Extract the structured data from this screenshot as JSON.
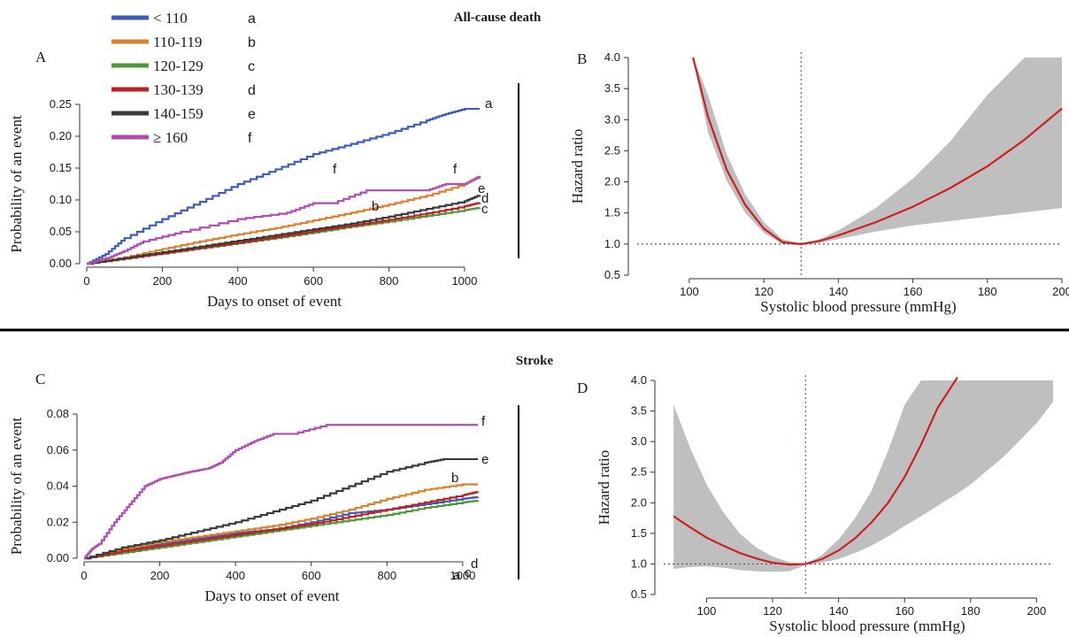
{
  "section_titles": {
    "top": "All-cause death",
    "bottom": "Stroke"
  },
  "legend": [
    {
      "label": "< 110",
      "letter": "a",
      "color": "#3e5dba"
    },
    {
      "label": "110-119",
      "letter": "b",
      "color": "#d9822b"
    },
    {
      "label": "120-129",
      "letter": "c",
      "color": "#4e9a3a"
    },
    {
      "label": "130-139",
      "letter": "d",
      "color": "#c0201f"
    },
    {
      "label": "140-159",
      "letter": "e",
      "color": "#3a3a3a"
    },
    {
      "label": "≥ 160",
      "letter": "f",
      "color": "#b04bb0"
    }
  ],
  "chart_data": [
    {
      "panel": "A",
      "type": "line",
      "xlabel": "Days to onset of event",
      "ylabel": "Probability of an event",
      "xlim": [
        0,
        1040
      ],
      "ylim": [
        0,
        0.25
      ],
      "xticks": [
        "0",
        "200",
        "400",
        "600",
        "800",
        "1000"
      ],
      "yticks": [
        "0.00",
        "0.05",
        "0.10",
        "0.15",
        "0.20",
        "0.25"
      ],
      "series": [
        {
          "name": "< 110",
          "letter": "a",
          "color": "#3e5dba",
          "x": [
            0,
            50,
            100,
            200,
            300,
            400,
            500,
            600,
            700,
            800,
            900,
            950,
            1000,
            1040
          ],
          "y": [
            0,
            0.015,
            0.04,
            0.07,
            0.097,
            0.125,
            0.148,
            0.172,
            0.188,
            0.205,
            0.225,
            0.235,
            0.243,
            0.243
          ]
        },
        {
          "name": "110-119",
          "letter": "b",
          "color": "#d9822b",
          "x": [
            0,
            100,
            200,
            300,
            400,
            500,
            600,
            700,
            800,
            900,
            1000,
            1040
          ],
          "y": [
            0,
            0.01,
            0.023,
            0.035,
            0.046,
            0.056,
            0.068,
            0.08,
            0.093,
            0.107,
            0.125,
            0.138
          ]
        },
        {
          "name": "120-129",
          "letter": "c",
          "color": "#4e9a3a",
          "x": [
            0,
            100,
            200,
            300,
            400,
            500,
            600,
            700,
            800,
            900,
            1000,
            1040
          ],
          "y": [
            0,
            0.008,
            0.016,
            0.024,
            0.032,
            0.04,
            0.049,
            0.058,
            0.066,
            0.075,
            0.084,
            0.088
          ]
        },
        {
          "name": "130-139",
          "letter": "d",
          "color": "#c0201f",
          "x": [
            0,
            100,
            200,
            300,
            400,
            500,
            600,
            700,
            800,
            900,
            1000,
            1040
          ],
          "y": [
            0,
            0.008,
            0.016,
            0.025,
            0.033,
            0.042,
            0.051,
            0.06,
            0.069,
            0.079,
            0.09,
            0.096
          ]
        },
        {
          "name": "140-159",
          "letter": "e",
          "color": "#3a3a3a",
          "x": [
            0,
            100,
            200,
            300,
            400,
            500,
            600,
            700,
            800,
            900,
            1000,
            1040
          ],
          "y": [
            0,
            0.009,
            0.018,
            0.027,
            0.036,
            0.045,
            0.054,
            0.063,
            0.074,
            0.086,
            0.098,
            0.108
          ]
        },
        {
          "name": "≥ 160",
          "letter": "f",
          "color": "#b04bb0",
          "x": [
            0,
            60,
            100,
            150,
            250,
            400,
            530,
            600,
            650,
            740,
            800,
            900,
            950,
            1000,
            1040
          ],
          "y": [
            0,
            0.01,
            0.02,
            0.035,
            0.05,
            0.07,
            0.08,
            0.095,
            0.095,
            0.115,
            0.115,
            0.115,
            0.125,
            0.125,
            0.137
          ]
        }
      ]
    },
    {
      "panel": "B",
      "type": "line",
      "xlabel": "Systolic blood pressure (mmHg)",
      "ylabel": "Hazard ratio",
      "xlim": [
        86,
        200
      ],
      "ylim": [
        0.5,
        4.0
      ],
      "xticks": [
        "100",
        "120",
        "140",
        "160",
        "180",
        "200"
      ],
      "yticks": [
        "0.5",
        "1.0",
        "1.5",
        "2.0",
        "2.5",
        "3.0",
        "3.5",
        "4.0"
      ],
      "reference_y": 1.0,
      "reference_x": 130,
      "ci_color": "#bfbfbf",
      "curve_color": "#cc2020",
      "x": [
        101,
        105,
        110,
        115,
        120,
        125,
        130,
        135,
        140,
        150,
        160,
        170,
        180,
        190,
        200
      ],
      "hr": [
        4.0,
        3.05,
        2.2,
        1.63,
        1.25,
        1.03,
        1.0,
        1.05,
        1.14,
        1.35,
        1.6,
        1.9,
        2.25,
        2.68,
        3.18
      ],
      "lower": [
        4.0,
        2.8,
        2.02,
        1.5,
        1.18,
        1.0,
        0.98,
        1.02,
        1.08,
        1.2,
        1.3,
        1.37,
        1.44,
        1.51,
        1.58
      ],
      "upper": [
        4.0,
        3.4,
        2.45,
        1.8,
        1.35,
        1.08,
        1.0,
        1.08,
        1.22,
        1.58,
        2.05,
        2.65,
        3.4,
        4.0,
        4.0
      ]
    },
    {
      "panel": "C",
      "type": "line",
      "xlabel": "Days to onset of event",
      "ylabel": "Probability of an event",
      "xlim": [
        0,
        1040
      ],
      "ylim": [
        0,
        0.08
      ],
      "xticks": [
        "0",
        "200",
        "400",
        "600",
        "800",
        "1000"
      ],
      "yticks": [
        "0.00",
        "0.02",
        "0.04",
        "0.06",
        "0.08"
      ],
      "series": [
        {
          "name": "< 110",
          "letter": "a",
          "color": "#3e5dba",
          "x": [
            0,
            100,
            200,
            300,
            400,
            500,
            600,
            700,
            800,
            900,
            1000,
            1040
          ],
          "y": [
            0,
            0.004,
            0.008,
            0.011,
            0.014,
            0.016,
            0.02,
            0.025,
            0.027,
            0.03,
            0.033,
            0.034
          ]
        },
        {
          "name": "110-119",
          "letter": "b",
          "color": "#d9822b",
          "x": [
            0,
            100,
            200,
            300,
            400,
            500,
            600,
            700,
            800,
            900,
            1000,
            1040
          ],
          "y": [
            0,
            0.005,
            0.009,
            0.012,
            0.015,
            0.018,
            0.022,
            0.027,
            0.033,
            0.038,
            0.041,
            0.041
          ]
        },
        {
          "name": "120-129",
          "letter": "c",
          "color": "#4e9a3a",
          "x": [
            0,
            100,
            200,
            300,
            400,
            500,
            600,
            700,
            800,
            900,
            1000,
            1040
          ],
          "y": [
            0,
            0.003,
            0.006,
            0.009,
            0.012,
            0.015,
            0.018,
            0.021,
            0.024,
            0.028,
            0.031,
            0.032
          ]
        },
        {
          "name": "130-139",
          "letter": "d",
          "color": "#c0201f",
          "x": [
            0,
            100,
            200,
            300,
            400,
            500,
            600,
            700,
            800,
            900,
            1000,
            1040
          ],
          "y": [
            0,
            0.004,
            0.007,
            0.01,
            0.013,
            0.016,
            0.019,
            0.023,
            0.027,
            0.031,
            0.035,
            0.037
          ]
        },
        {
          "name": "140-159",
          "letter": "e",
          "color": "#3a3a3a",
          "x": [
            0,
            100,
            200,
            300,
            400,
            500,
            600,
            700,
            800,
            900,
            950,
            1040
          ],
          "y": [
            0,
            0.006,
            0.01,
            0.015,
            0.02,
            0.026,
            0.032,
            0.04,
            0.048,
            0.053,
            0.055,
            0.055
          ]
        },
        {
          "name": "≥ 160",
          "letter": "f",
          "color": "#b04bb0",
          "x": [
            0,
            20,
            40,
            80,
            120,
            160,
            200,
            240,
            280,
            330,
            360,
            400,
            450,
            500,
            550,
            640,
            700,
            800,
            900,
            1040
          ],
          "y": [
            0,
            0.005,
            0.008,
            0.02,
            0.03,
            0.04,
            0.044,
            0.046,
            0.048,
            0.05,
            0.053,
            0.06,
            0.065,
            0.069,
            0.069,
            0.074,
            0.074,
            0.074,
            0.074,
            0.074
          ]
        }
      ]
    },
    {
      "panel": "D",
      "type": "line",
      "xlabel": "Systolic blood pressure (mmHg)",
      "ylabel": "Hazard ratio",
      "xlim": [
        87,
        205
      ],
      "ylim": [
        0.5,
        4.0
      ],
      "xticks": [
        "100",
        "120",
        "140",
        "160",
        "180",
        "200"
      ],
      "yticks": [
        "0.5",
        "1.0",
        "1.5",
        "2.0",
        "2.5",
        "3.0",
        "3.5",
        "4.0"
      ],
      "reference_y": 1.0,
      "reference_x": 130,
      "ci_color": "#bfbfbf",
      "curve_color": "#cc2020",
      "x": [
        90,
        95,
        100,
        105,
        110,
        115,
        120,
        125,
        130,
        135,
        140,
        145,
        150,
        155,
        160,
        165,
        170,
        176,
        180,
        190,
        200,
        205
      ],
      "hr": [
        1.78,
        1.6,
        1.43,
        1.3,
        1.18,
        1.09,
        1.02,
        0.99,
        1.0,
        1.08,
        1.22,
        1.42,
        1.68,
        2.0,
        2.42,
        2.95,
        3.55,
        4.05,
        null,
        null,
        null,
        null
      ],
      "lower": [
        0.92,
        0.95,
        0.96,
        0.94,
        0.9,
        0.88,
        0.87,
        0.88,
        0.98,
        1.02,
        1.08,
        1.18,
        1.3,
        1.45,
        1.62,
        1.78,
        1.95,
        2.15,
        2.3,
        2.75,
        3.3,
        3.65
      ],
      "upper": [
        3.6,
        2.9,
        2.3,
        1.85,
        1.5,
        1.27,
        1.12,
        1.03,
        1.0,
        1.15,
        1.4,
        1.75,
        2.2,
        2.85,
        3.6,
        4.0,
        4.0,
        4.0,
        4.0,
        4.0,
        4.0,
        4.0
      ]
    }
  ]
}
